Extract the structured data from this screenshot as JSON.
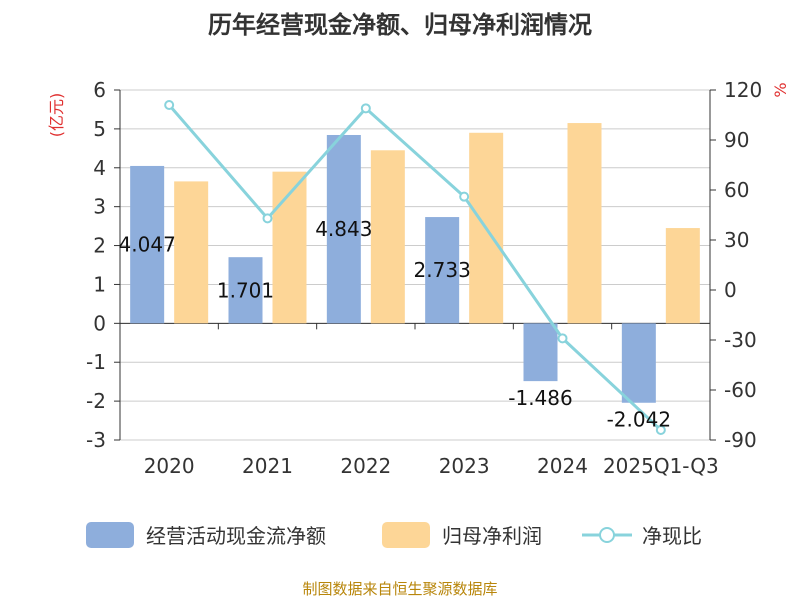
{
  "chart_data": {
    "type": "bar",
    "title": "历年经营现金净额、归母净利润情况",
    "categories": [
      "2020",
      "2021",
      "2022",
      "2023",
      "2024",
      "2025Q1-Q3"
    ],
    "series": [
      {
        "name": "经营活动现金流净额",
        "type": "bar",
        "axis": "left",
        "color": "#8eaedc",
        "values": [
          4.047,
          1.701,
          4.843,
          2.733,
          -1.486,
          -2.042
        ],
        "labels": [
          "4.047",
          "1.701",
          "4.843",
          "2.733",
          "-1.486",
          "-2.042"
        ]
      },
      {
        "name": "归母净利润",
        "type": "bar",
        "axis": "left",
        "color": "#fdd697",
        "values": [
          3.65,
          3.9,
          4.45,
          4.9,
          5.15,
          2.45
        ]
      },
      {
        "name": "净现比",
        "type": "line",
        "axis": "right",
        "color": "#88d3dc",
        "values": [
          111,
          43,
          109,
          56,
          -29,
          -84
        ]
      }
    ],
    "yleft": {
      "label": "(亿元)",
      "ylim": [
        -3,
        6
      ],
      "ticks": [
        "-3",
        "-2",
        "-1",
        "0",
        "1",
        "2",
        "3",
        "4",
        "5",
        "6"
      ]
    },
    "yright": {
      "label": "%",
      "ylim": [
        -90,
        120
      ],
      "ticks": [
        "-90",
        "-60",
        "-30",
        "0",
        "30",
        "60",
        "90",
        "120"
      ]
    },
    "grid": true,
    "legend_position": "bottom"
  },
  "source_note": "制图数据来自恒生聚源数据库"
}
